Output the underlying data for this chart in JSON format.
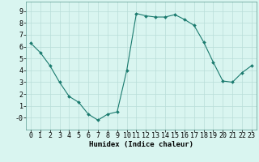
{
  "x": [
    0,
    1,
    2,
    3,
    4,
    5,
    6,
    7,
    8,
    9,
    10,
    11,
    12,
    13,
    14,
    15,
    16,
    17,
    18,
    19,
    20,
    21,
    22,
    23
  ],
  "y": [
    6.3,
    5.5,
    4.4,
    3.0,
    1.8,
    1.3,
    0.3,
    -0.2,
    0.3,
    0.5,
    4.0,
    8.8,
    8.6,
    8.5,
    8.5,
    8.7,
    8.3,
    7.8,
    6.4,
    4.7,
    3.1,
    3.0,
    3.8,
    4.4
  ],
  "line_color": "#1a7a6e",
  "marker": "D",
  "marker_size": 2.0,
  "bg_color": "#d9f5f0",
  "grid_color": "#b8ddd8",
  "xlabel": "Humidex (Indice chaleur)",
  "xlim": [
    -0.5,
    23.5
  ],
  "ylim": [
    -1.0,
    9.8
  ],
  "yticks": [
    0,
    1,
    2,
    3,
    4,
    5,
    6,
    7,
    8,
    9
  ],
  "ytick_labels": [
    "-0",
    "1",
    "2",
    "3",
    "4",
    "5",
    "6",
    "7",
    "8",
    "9"
  ],
  "xticks": [
    0,
    1,
    2,
    3,
    4,
    5,
    6,
    7,
    8,
    9,
    10,
    11,
    12,
    13,
    14,
    15,
    16,
    17,
    18,
    19,
    20,
    21,
    22,
    23
  ],
  "xlabel_fontsize": 6.5,
  "tick_fontsize": 6.0,
  "linewidth": 0.8
}
